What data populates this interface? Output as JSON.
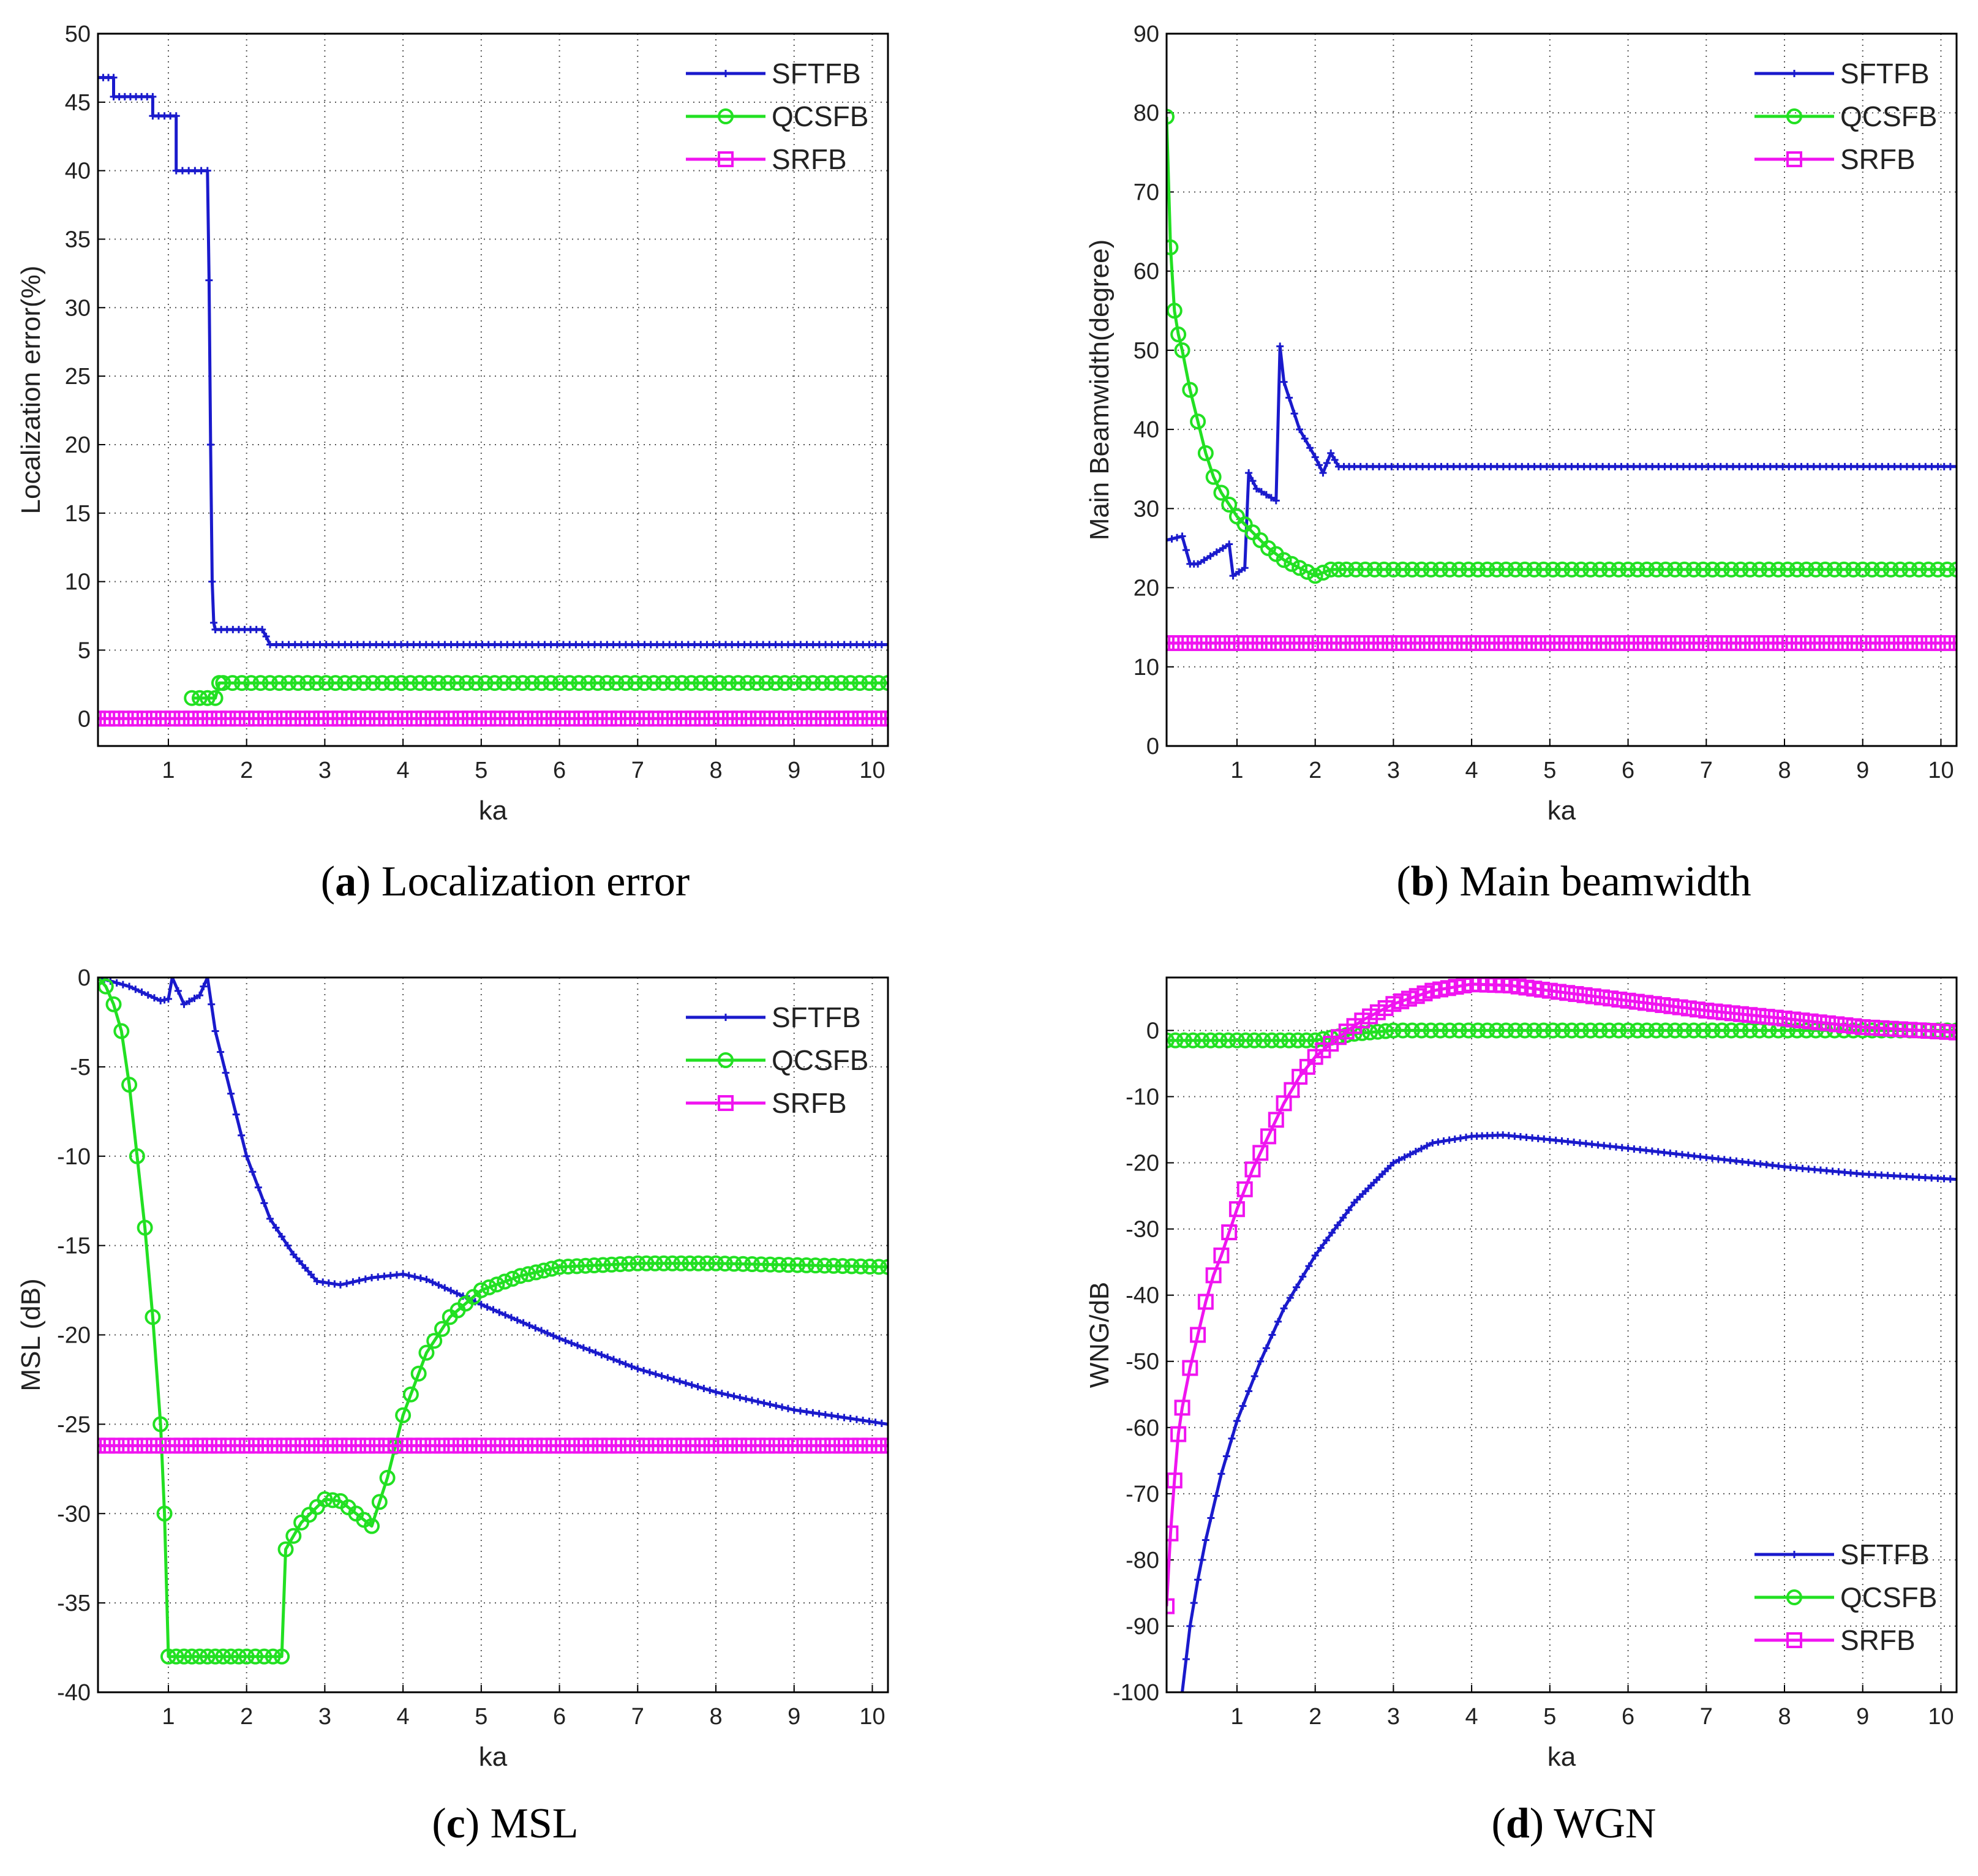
{
  "colors": {
    "SFTFB": "#1a1acc",
    "QCSFB": "#22e022",
    "SRFB": "#f014f0"
  },
  "chart_data": [
    {
      "type": "line",
      "id": "a",
      "caption_letter": "a",
      "caption_text": "Localization error",
      "xlabel": "ka",
      "ylabel": "Localization error(%)",
      "xlim": [
        0.1,
        10.2
      ],
      "ylim": [
        -2,
        50
      ],
      "xticks": [
        1,
        2,
        3,
        4,
        5,
        6,
        7,
        8,
        9,
        10
      ],
      "yticks": [
        0,
        5,
        10,
        15,
        20,
        25,
        30,
        35,
        40,
        45,
        50
      ],
      "grid": true,
      "legend_position": "top-right",
      "series": [
        {
          "name": "SFTFB",
          "marker": "dot",
          "x": [
            0.1,
            0.3,
            0.3,
            0.8,
            0.8,
            1.1,
            1.1,
            1.5,
            1.52,
            1.54,
            1.56,
            1.58,
            1.6,
            1.6,
            2.2,
            2.25,
            2.3,
            10.2
          ],
          "y": [
            46.8,
            46.8,
            45.4,
            45.4,
            44,
            44,
            40,
            40,
            32,
            20,
            10,
            7,
            6.5,
            6.5,
            6.5,
            6,
            5.4,
            5.4
          ]
        },
        {
          "name": "QCSFB",
          "marker": "circle",
          "x": [
            1.3,
            1.5,
            1.6,
            1.65,
            1.7,
            10.2
          ],
          "y": [
            1.5,
            1.5,
            1.5,
            2.6,
            2.6,
            2.6
          ]
        },
        {
          "name": "SRFB",
          "marker": "square",
          "x": [
            0.1,
            10.2
          ],
          "y": [
            0,
            0
          ]
        }
      ]
    },
    {
      "type": "line",
      "id": "b",
      "caption_letter": "b",
      "caption_text": "Main beamwidth",
      "xlabel": "ka",
      "ylabel": "Main Beamwidth(degree)",
      "xlim": [
        0.1,
        10.2
      ],
      "ylim": [
        0,
        90
      ],
      "xticks": [
        1,
        2,
        3,
        4,
        5,
        6,
        7,
        8,
        9,
        10
      ],
      "yticks": [
        0,
        10,
        20,
        30,
        40,
        50,
        60,
        70,
        80,
        90
      ],
      "grid": true,
      "legend_position": "top-right",
      "series": [
        {
          "name": "SFTFB",
          "marker": "dot",
          "x": [
            0.1,
            0.3,
            0.4,
            0.5,
            0.9,
            0.95,
            1.1,
            1.15,
            1.25,
            1.5,
            1.55,
            1.6,
            1.8,
            2.0,
            2.1,
            2.2,
            2.3,
            2.5,
            10.2
          ],
          "y": [
            26,
            26.5,
            23,
            23,
            25.5,
            21.5,
            22.5,
            34.5,
            32.5,
            31,
            50.5,
            46,
            40,
            36.5,
            34.5,
            37,
            35.3,
            35.3,
            35.3
          ]
        },
        {
          "name": "QCSFB",
          "marker": "circle",
          "x": [
            0.1,
            0.15,
            0.2,
            0.25,
            0.3,
            0.4,
            0.5,
            0.6,
            0.7,
            0.8,
            1.0,
            1.2,
            1.4,
            1.6,
            1.8,
            2.0,
            2.2,
            2.4,
            10.2
          ],
          "y": [
            79.5,
            63,
            55,
            52,
            50,
            45,
            41,
            37,
            34,
            32,
            29,
            27,
            25,
            23.5,
            22.5,
            21.5,
            22.3,
            22.3,
            22.3
          ]
        },
        {
          "name": "SRFB",
          "marker": "square",
          "x": [
            0.1,
            10.2
          ],
          "y": [
            13,
            13
          ]
        }
      ]
    },
    {
      "type": "line",
      "id": "c",
      "caption_letter": "c",
      "caption_text": "MSL",
      "xlabel": "ka",
      "ylabel": "MSL (dB)",
      "xlim": [
        0.1,
        10.2
      ],
      "ylim": [
        -40,
        0
      ],
      "xticks": [
        1,
        2,
        3,
        4,
        5,
        6,
        7,
        8,
        9,
        10
      ],
      "yticks": [
        0,
        -5,
        -10,
        -15,
        -20,
        -25,
        -30,
        -35,
        -40
      ],
      "grid": true,
      "legend_position": "top-right",
      "series": [
        {
          "name": "SFTFB",
          "marker": "dot",
          "x": [
            0.1,
            0.5,
            0.9,
            1.0,
            1.05,
            1.2,
            1.4,
            1.5,
            1.6,
            1.8,
            2.0,
            2.3,
            2.6,
            2.9,
            3.2,
            3.6,
            4.0,
            4.3,
            5.0,
            6.0,
            7.0,
            8.0,
            9.0,
            10.2
          ],
          "y": [
            0,
            -0.5,
            -1.3,
            -1.2,
            0,
            -1.5,
            -1,
            0,
            -3,
            -6.5,
            -10,
            -13.5,
            -15.5,
            -17,
            -17.2,
            -16.8,
            -16.6,
            -16.9,
            -18.3,
            -20.2,
            -21.9,
            -23.2,
            -24.2,
            -25
          ]
        },
        {
          "name": "QCSFB",
          "marker": "circle",
          "x": [
            0.1,
            0.2,
            0.3,
            0.4,
            0.5,
            0.6,
            0.7,
            0.8,
            0.9,
            0.95,
            1.0,
            1.2,
            1.5,
            2.0,
            2.45,
            2.5,
            2.7,
            3.0,
            3.2,
            3.4,
            3.6,
            3.8,
            4.0,
            4.3,
            4.6,
            5.0,
            5.5,
            6.0,
            7.0,
            8.0,
            10.2
          ],
          "y": [
            0,
            -0.5,
            -1.5,
            -3,
            -6,
            -10,
            -14,
            -19,
            -25,
            -30,
            -38,
            -38,
            -38,
            -38,
            -38,
            -32,
            -30.5,
            -29.2,
            -29.3,
            -30,
            -30.7,
            -28,
            -24.5,
            -21,
            -19,
            -17.5,
            -16.7,
            -16.2,
            -16,
            -16,
            -16.2
          ]
        },
        {
          "name": "SRFB",
          "marker": "square",
          "x": [
            0.1,
            10.2
          ],
          "y": [
            -26.2,
            -26.2
          ]
        }
      ]
    },
    {
      "type": "line",
      "id": "d",
      "caption_letter": "d",
      "caption_text": "WGN",
      "xlabel": "ka",
      "ylabel": "WNG/dB",
      "xlim": [
        0.1,
        10.2
      ],
      "ylim": [
        -100,
        8
      ],
      "xticks": [
        1,
        2,
        3,
        4,
        5,
        6,
        7,
        8,
        9,
        10
      ],
      "yticks": [
        0,
        -10,
        -20,
        -30,
        -40,
        -50,
        -60,
        -70,
        -80,
        -90,
        -100
      ],
      "grid": true,
      "legend_position": "bottom-right",
      "series": [
        {
          "name": "SFTFB",
          "marker": "dot",
          "x": [
            0.3,
            0.4,
            0.5,
            0.6,
            0.8,
            1.0,
            1.3,
            1.6,
            2.0,
            2.5,
            3.0,
            3.5,
            4.0,
            4.4,
            5.0,
            6.0,
            7.0,
            8.0,
            9.0,
            10.2
          ],
          "y": [
            -100,
            -90,
            -83,
            -77,
            -67,
            -59,
            -50,
            -42,
            -34,
            -26,
            -20,
            -17,
            -16,
            -15.8,
            -16.5,
            -17.8,
            -19.2,
            -20.6,
            -21.7,
            -22.5
          ]
        },
        {
          "name": "QCSFB",
          "marker": "circle",
          "x": [
            0.1,
            1.0,
            2.0,
            2.5,
            3.0,
            10.2
          ],
          "y": [
            -1.5,
            -1.5,
            -1.5,
            -0.5,
            0,
            0
          ]
        },
        {
          "name": "SRFB",
          "marker": "square",
          "x": [
            0.1,
            0.15,
            0.2,
            0.25,
            0.3,
            0.4,
            0.5,
            0.6,
            0.7,
            0.8,
            1.0,
            1.2,
            1.4,
            1.6,
            1.8,
            2.0,
            2.3,
            2.6,
            3.0,
            3.5,
            4.0,
            4.5,
            5.0,
            6.0,
            7.0,
            8.0,
            9.0,
            10.2
          ],
          "y": [
            -87,
            -76,
            -68,
            -61,
            -57,
            -51,
            -46,
            -41,
            -37,
            -34,
            -27,
            -21,
            -16,
            -11,
            -7,
            -4,
            -1,
            1.5,
            4,
            6,
            7,
            6.8,
            6,
            4.5,
            3,
            1.8,
            0.5,
            -0.3
          ]
        }
      ]
    }
  ]
}
